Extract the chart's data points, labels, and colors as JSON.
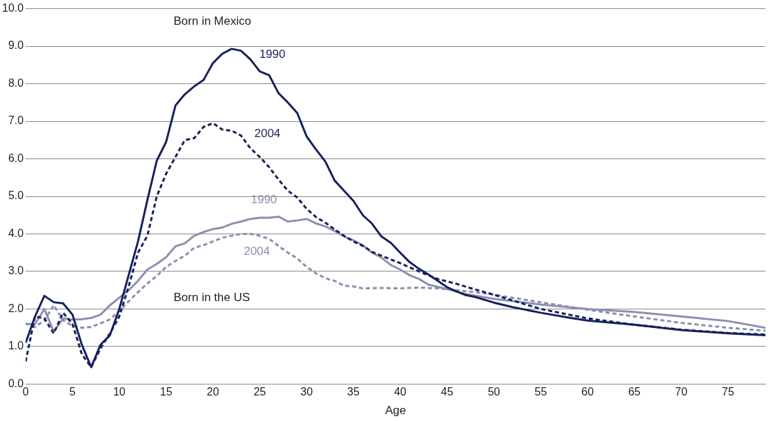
{
  "chart_data": {
    "type": "line",
    "xlabel": "Age",
    "xlim": [
      0,
      79
    ],
    "xticks": [
      0,
      5,
      10,
      15,
      20,
      25,
      30,
      35,
      40,
      45,
      50,
      55,
      60,
      65,
      70,
      75
    ],
    "ylim": [
      0,
      10
    ],
    "yticks": [
      {
        "value": 0,
        "label": "0.0"
      },
      {
        "value": 1,
        "label": "1.0"
      },
      {
        "value": 2,
        "label": "2.0"
      },
      {
        "value": 3,
        "label": "3.0"
      },
      {
        "value": 4,
        "label": "4.0"
      },
      {
        "value": 5,
        "label": "5.0"
      },
      {
        "value": 6,
        "label": "6.0"
      },
      {
        "value": 7,
        "label": "7.0"
      },
      {
        "value": 8,
        "label": "8.0"
      },
      {
        "value": 9,
        "label": "9.0"
      },
      {
        "value": 10,
        "label": "10.0"
      }
    ],
    "grid": "y",
    "legend": false,
    "marker": "none",
    "series": [
      {
        "name": "1990",
        "color": "#14215a",
        "line_style": "solid",
        "x": [
          0,
          1,
          2,
          3,
          4,
          5,
          6,
          7,
          8,
          9,
          10,
          11,
          12,
          13,
          14,
          15,
          16,
          17,
          18,
          19,
          20,
          21,
          22,
          23,
          24,
          25,
          26,
          27,
          28,
          29,
          30,
          31,
          32,
          33,
          34,
          35,
          36,
          37,
          38,
          39,
          40,
          41,
          42,
          43,
          44,
          45,
          46,
          47,
          48,
          50,
          52,
          55,
          58,
          60,
          65,
          70,
          75,
          79
        ],
        "values": [
          1.1,
          1.8,
          2.35,
          2.18,
          2.15,
          1.85,
          1.05,
          0.45,
          1.05,
          1.3,
          2.0,
          2.9,
          3.8,
          4.9,
          5.95,
          6.45,
          7.42,
          7.72,
          7.93,
          8.1,
          8.55,
          8.8,
          8.93,
          8.88,
          8.65,
          8.33,
          8.23,
          7.75,
          7.5,
          7.22,
          6.6,
          6.25,
          5.93,
          5.42,
          5.15,
          4.88,
          4.5,
          4.27,
          3.93,
          3.76,
          3.5,
          3.25,
          3.07,
          2.92,
          2.75,
          2.58,
          2.47,
          2.37,
          2.32,
          2.17,
          2.05,
          1.9,
          1.77,
          1.69,
          1.58,
          1.44,
          1.35,
          1.3
        ]
      },
      {
        "name": "2004",
        "color": "#14215a",
        "line_style": "dashed",
        "x": [
          0,
          1,
          2,
          3,
          4,
          5,
          6,
          7,
          8,
          9,
          10,
          11,
          12,
          13,
          14,
          15,
          16,
          17,
          18,
          19,
          20,
          21,
          22,
          23,
          24,
          25,
          26,
          27,
          28,
          29,
          30,
          31,
          32,
          33,
          34,
          35,
          36,
          37,
          38,
          40,
          42,
          44,
          46,
          48,
          50,
          55,
          60,
          65,
          70,
          75,
          79
        ],
        "values": [
          0.6,
          1.8,
          1.75,
          1.35,
          1.9,
          1.6,
          0.8,
          0.45,
          0.95,
          1.35,
          1.8,
          2.6,
          3.5,
          3.95,
          5.0,
          5.6,
          6.05,
          6.5,
          6.55,
          6.85,
          6.95,
          6.78,
          6.75,
          6.62,
          6.28,
          6.05,
          5.78,
          5.45,
          5.15,
          4.97,
          4.67,
          4.45,
          4.3,
          4.12,
          3.95,
          3.8,
          3.68,
          3.52,
          3.42,
          3.22,
          3.0,
          2.8,
          2.67,
          2.52,
          2.38,
          2.0,
          1.75,
          1.58,
          1.45,
          1.36,
          1.32
        ]
      },
      {
        "name": "1990",
        "color": "#8b90b0",
        "line_style": "solid",
        "x": [
          0,
          1,
          2,
          3,
          4,
          5,
          6,
          7,
          8,
          9,
          10,
          11,
          12,
          13,
          14,
          15,
          16,
          17,
          18,
          19,
          20,
          21,
          22,
          23,
          24,
          25,
          26,
          27,
          28,
          29,
          30,
          31,
          32,
          33,
          34,
          35,
          36,
          37,
          38,
          39,
          40,
          41,
          42,
          43,
          45,
          47,
          50,
          55,
          60,
          65,
          70,
          75,
          79
        ],
        "values": [
          1.6,
          1.6,
          2.0,
          1.4,
          1.75,
          1.72,
          1.73,
          1.76,
          1.85,
          2.1,
          2.3,
          2.5,
          2.75,
          3.05,
          3.2,
          3.38,
          3.67,
          3.75,
          3.95,
          4.05,
          4.13,
          4.17,
          4.27,
          4.33,
          4.4,
          4.43,
          4.43,
          4.46,
          4.33,
          4.36,
          4.4,
          4.28,
          4.2,
          4.08,
          3.93,
          3.83,
          3.7,
          3.5,
          3.37,
          3.17,
          3.05,
          2.9,
          2.8,
          2.65,
          2.53,
          2.4,
          2.27,
          2.12,
          2.0,
          1.92,
          1.8,
          1.68,
          1.5
        ]
      },
      {
        "name": "2004",
        "color": "#8b90b0",
        "line_style": "dashed",
        "x": [
          0,
          1,
          2,
          3,
          4,
          5,
          6,
          7,
          8,
          9,
          10,
          11,
          12,
          13,
          14,
          15,
          16,
          17,
          18,
          19,
          20,
          21,
          22,
          23,
          24,
          25,
          26,
          27,
          28,
          29,
          30,
          31,
          32,
          33,
          34,
          35,
          36,
          38,
          40,
          42,
          44,
          46,
          48,
          50,
          55,
          60,
          65,
          70,
          75,
          79
        ],
        "values": [
          1.62,
          1.52,
          1.7,
          2.1,
          1.7,
          1.55,
          1.5,
          1.52,
          1.62,
          1.72,
          1.95,
          2.2,
          2.45,
          2.68,
          2.88,
          3.12,
          3.28,
          3.42,
          3.63,
          3.7,
          3.8,
          3.9,
          3.95,
          4.0,
          4.0,
          3.95,
          3.87,
          3.68,
          3.5,
          3.35,
          3.12,
          2.95,
          2.82,
          2.75,
          2.62,
          2.6,
          2.55,
          2.56,
          2.55,
          2.57,
          2.55,
          2.5,
          2.45,
          2.38,
          2.18,
          1.98,
          1.8,
          1.63,
          1.5,
          1.42
        ]
      }
    ],
    "annotations": [
      "Born in Mexico",
      "Born in the US"
    ]
  }
}
